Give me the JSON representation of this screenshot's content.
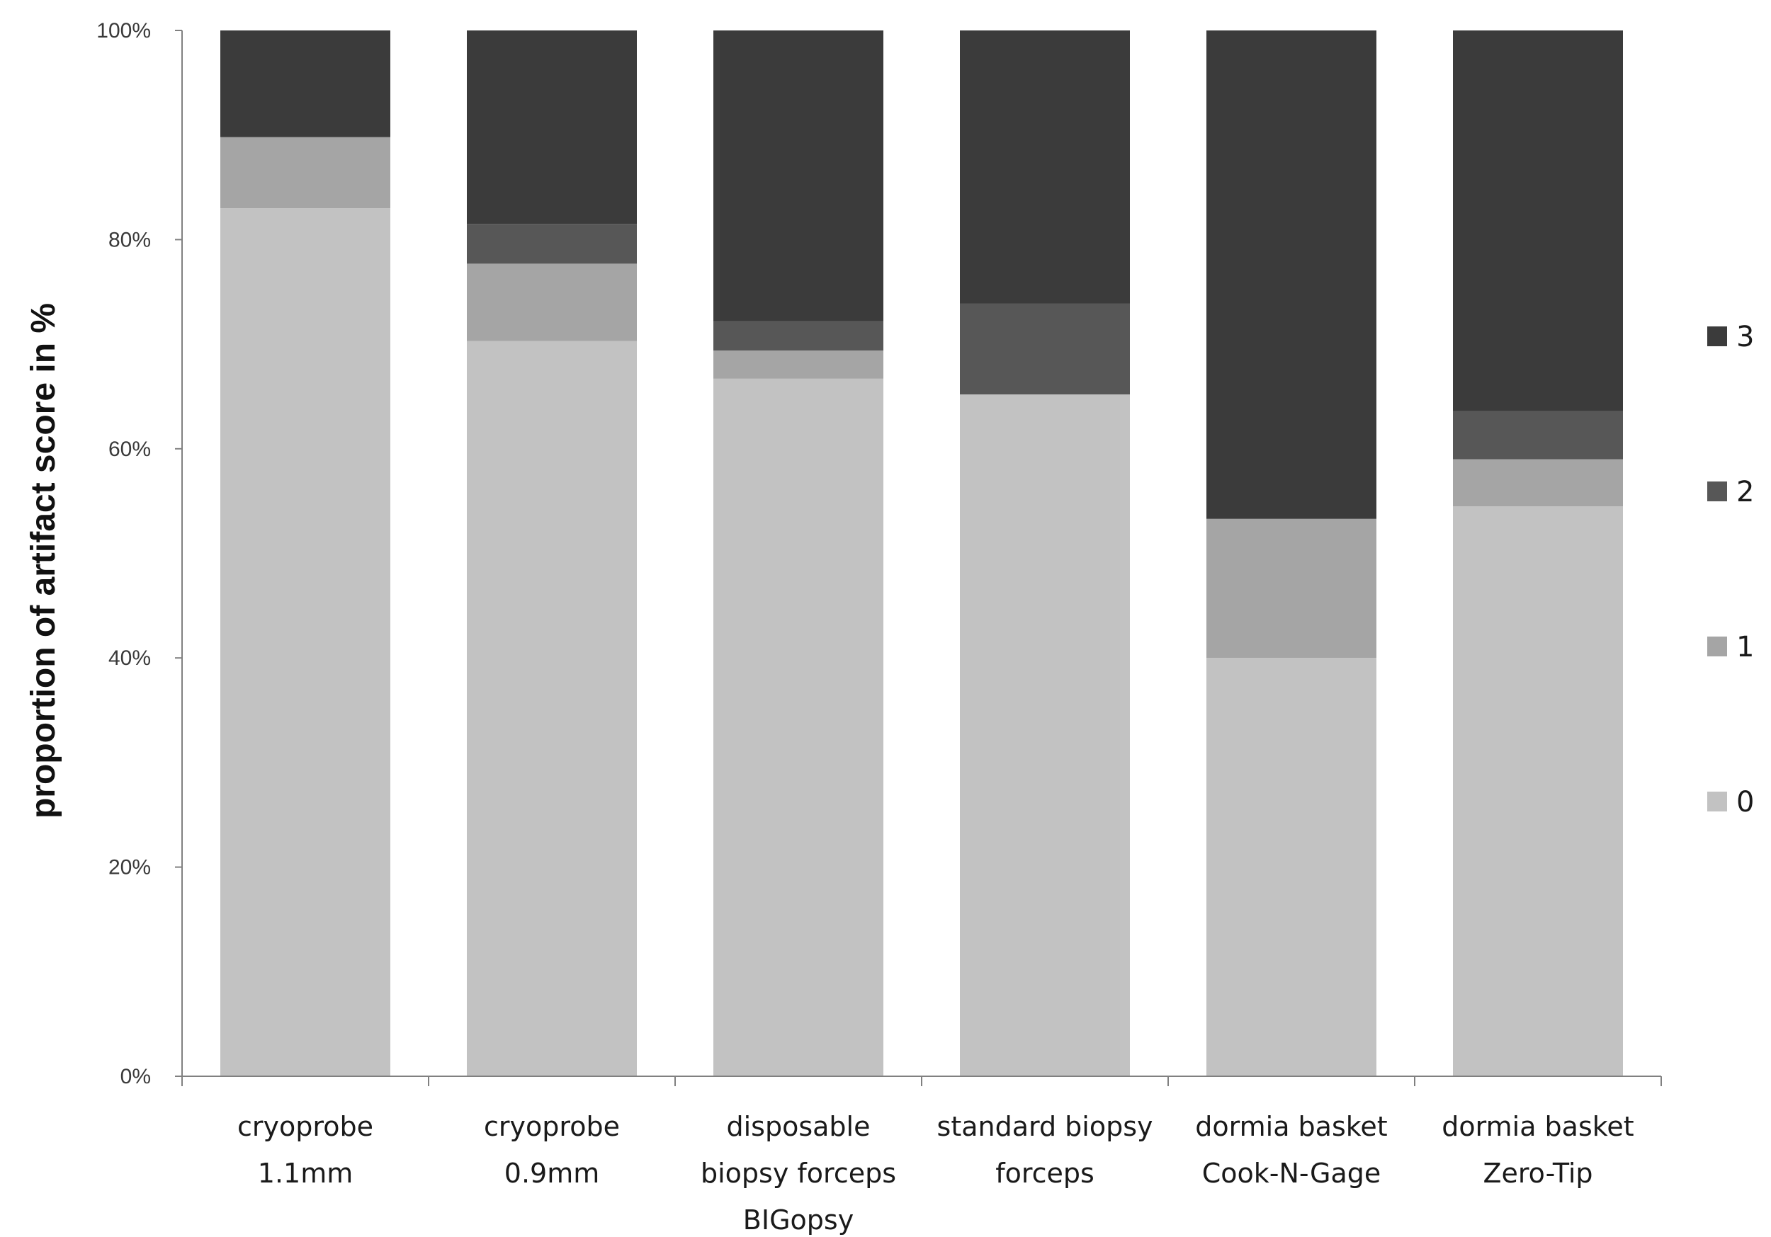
{
  "chart_data": {
    "type": "bar",
    "stacked": true,
    "percent": true,
    "title": "",
    "xlabel": "",
    "ylabel": "proportion of artifact score in %",
    "ylim": [
      0,
      100
    ],
    "yticks": [
      "0%",
      "20%",
      "40%",
      "60%",
      "80%",
      "100%"
    ],
    "grid": false,
    "legend_position": "right",
    "categories": [
      [
        "cryoprobe",
        "1.1mm"
      ],
      [
        "cryoprobe",
        "0.9mm"
      ],
      [
        "disposable",
        "biopsy forceps",
        "BIGopsy"
      ],
      [
        "standard biopsy",
        "forceps"
      ],
      [
        "dormia basket",
        "Cook-N-Gage"
      ],
      [
        "dormia basket",
        "Zero-Tip"
      ]
    ],
    "series": [
      {
        "name": "0",
        "color": "#c2c2c2",
        "values": [
          83,
          70.3,
          66.7,
          65.2,
          40,
          54.5
        ]
      },
      {
        "name": "1",
        "color": "#a5a5a5",
        "values": [
          6.8,
          7.4,
          2.7,
          0,
          13.3,
          4.5
        ]
      },
      {
        "name": "2",
        "color": "#575757",
        "values": [
          0,
          3.8,
          2.8,
          8.7,
          0,
          4.6
        ]
      },
      {
        "name": "3",
        "color": "#3b3b3b",
        "values": [
          10.2,
          18.5,
          27.8,
          26.1,
          46.7,
          36.4
        ]
      }
    ],
    "legend_order": [
      "3",
      "2",
      "1",
      "0"
    ]
  }
}
